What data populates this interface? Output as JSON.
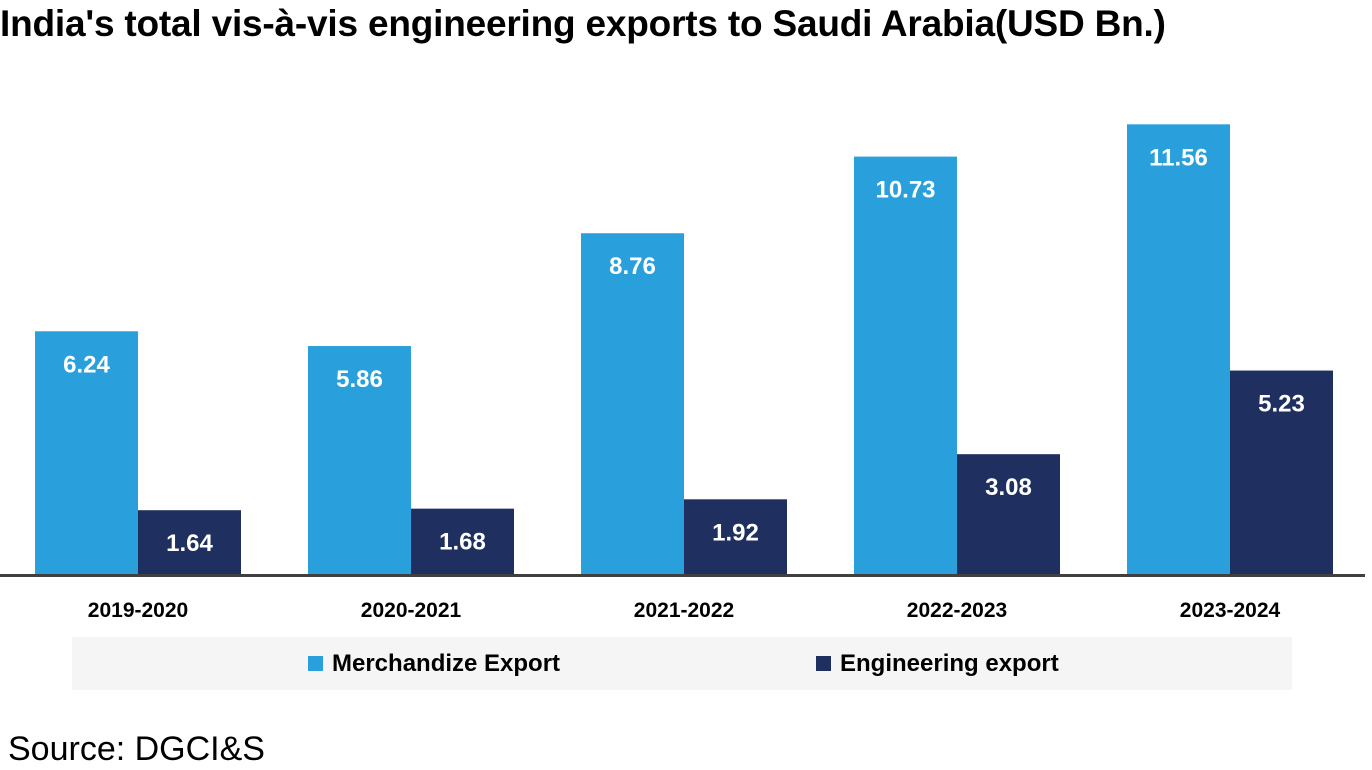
{
  "chart_data": {
    "type": "bar",
    "title": "India's total vis-à-vis engineering exports to Saudi Arabia(USD Bn.)",
    "categories": [
      "2019-2020",
      "2020-2021",
      "2021-2022",
      "2022-2023",
      "2023-2024"
    ],
    "series": [
      {
        "name": "Merchandize Export",
        "color": "#29a0db",
        "values": [
          6.24,
          5.86,
          8.76,
          10.73,
          11.56
        ],
        "labels": [
          "6.24",
          "5.86",
          "8.76",
          "10.73",
          "11.56"
        ]
      },
      {
        "name": "Engineering export",
        "color": "#1f3060",
        "values": [
          1.64,
          1.68,
          1.92,
          3.08,
          5.23
        ],
        "labels": [
          "1.64",
          "1.68",
          "1.92",
          "3.08",
          "5.23"
        ]
      }
    ],
    "ylim": [
      0,
      12
    ],
    "grid": false,
    "legend": "bottom",
    "label_color": "#ffffff"
  },
  "source": "Source: DGCI&S"
}
